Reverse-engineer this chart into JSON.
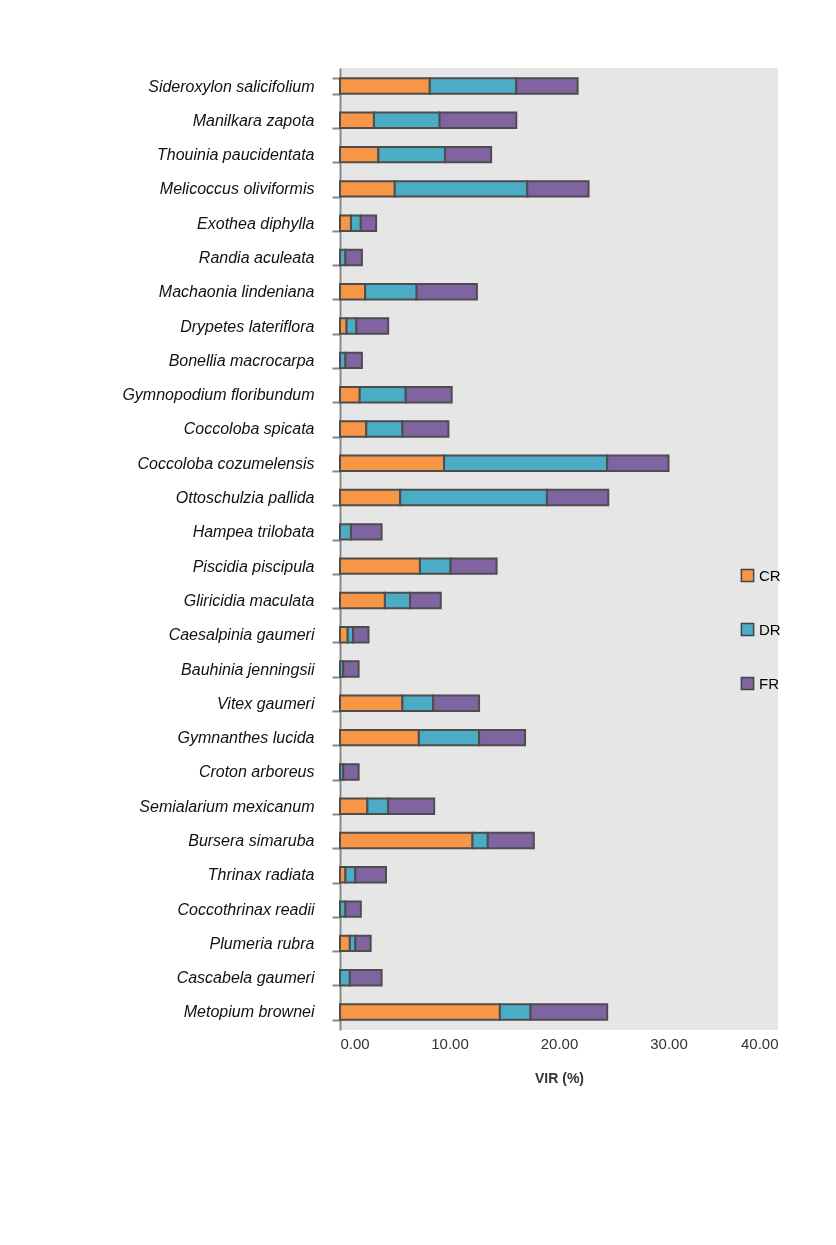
{
  "chart_data": {
    "type": "bar",
    "orientation": "horizontal",
    "stacked": true,
    "xlabel": "VIR (%)",
    "categories": [
      "Sideroxylon salicifolium",
      "Manilkara zapota",
      "Thouinia paucidentata",
      "Melicoccus oliviformis",
      "Exothea diphylla",
      "Randia aculeata",
      "Machaonia lindeniana",
      "Drypetes lateriflora",
      "Bonellia macrocarpa",
      "Gymnopodium floribundum",
      "Coccoloba spicata",
      "Coccoloba cozumelensis",
      "Ottoschulzia pallida",
      "Hampea trilobata",
      "Piscidia piscipula",
      "Gliricidia maculata",
      "Caesalpinia gaumeri",
      "Bauhinia jenningsii",
      "Vitex gaumeri",
      "Gymnanthes lucida",
      "Croton arboreus",
      "Semialarium mexicanum",
      "Bursera simaruba",
      "Thrinax radiata",
      "Coccothrinax readii",
      "Plumeria rubra",
      "Cascabela gaumeri",
      "Metopium brownei"
    ],
    "series": [
      {
        "name": "CR",
        "color": "#f79646",
        "values": [
          8.2,
          3.1,
          3.5,
          5.0,
          1.0,
          null,
          2.3,
          0.6,
          null,
          1.8,
          2.4,
          9.5,
          5.5,
          null,
          7.3,
          4.1,
          0.7,
          null,
          5.7,
          7.2,
          null,
          2.5,
          12.1,
          0.5,
          null,
          0.9,
          null,
          14.6
        ]
      },
      {
        "name": "DR",
        "color": "#4bacc6",
        "values": [
          7.9,
          6.0,
          6.1,
          12.1,
          0.9,
          0.5,
          4.7,
          0.9,
          0.5,
          4.2,
          3.3,
          14.9,
          13.4,
          1.0,
          2.8,
          2.3,
          0.5,
          0.3,
          2.8,
          5.5,
          0.3,
          1.9,
          1.4,
          0.9,
          0.5,
          0.5,
          0.9,
          2.8
        ]
      },
      {
        "name": "FR",
        "color": "#8064a2",
        "values": [
          5.6,
          7.0,
          4.2,
          5.6,
          1.4,
          1.5,
          5.5,
          2.9,
          1.5,
          4.2,
          4.2,
          5.6,
          5.6,
          2.8,
          4.2,
          2.8,
          1.4,
          1.4,
          4.2,
          4.2,
          1.4,
          4.2,
          4.2,
          2.8,
          1.4,
          1.4,
          2.9,
          7.0
        ]
      }
    ],
    "xlim": [
      0,
      40
    ],
    "xticks": [
      {
        "value": 0,
        "label": "0.00"
      },
      {
        "value": 10,
        "label": "10.00"
      },
      {
        "value": 20,
        "label": "20.00"
      },
      {
        "value": 30,
        "label": "30.00"
      },
      {
        "value": 40,
        "label": "40.00"
      }
    ],
    "legend": "right"
  }
}
